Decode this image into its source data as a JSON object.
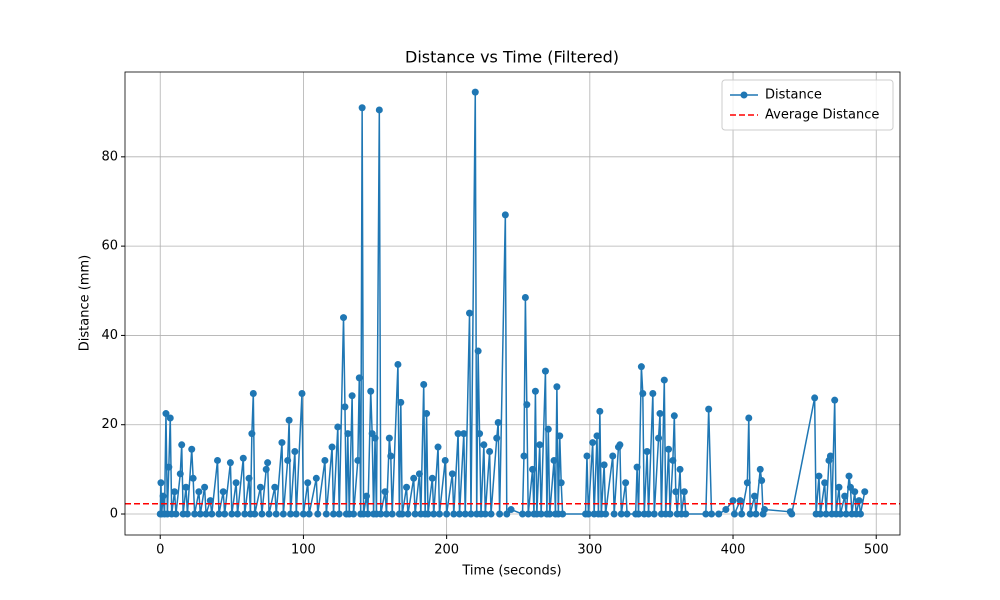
{
  "chart_data": {
    "type": "line",
    "title": "Distance vs Time (Filtered)",
    "xlabel": "Time (seconds)",
    "ylabel": "Distance (mm)",
    "x": [
      0,
      0.5,
      1,
      2,
      3,
      4,
      5,
      6,
      7,
      8,
      10,
      11,
      14,
      15,
      16,
      18,
      19,
      22,
      23,
      24,
      27,
      28,
      31,
      32,
      35,
      36,
      40,
      41,
      44,
      45,
      49,
      50,
      53,
      54,
      58,
      59,
      62,
      63,
      64,
      65,
      66,
      70,
      71,
      74,
      75,
      76,
      80,
      81,
      85,
      86,
      89,
      90,
      91,
      94,
      95,
      99,
      100,
      103,
      104,
      109,
      110,
      115,
      116,
      120,
      121,
      124,
      125,
      128,
      129,
      130,
      131,
      132,
      134,
      135,
      138,
      139,
      140,
      141,
      142,
      144,
      145,
      147,
      148,
      149,
      150,
      151,
      153,
      154,
      157,
      158,
      160,
      161,
      162,
      166,
      167,
      168,
      169,
      172,
      173,
      177,
      178,
      181,
      182,
      184,
      185,
      186,
      187,
      190,
      191,
      194,
      195,
      199,
      200,
      204,
      205,
      208,
      209,
      212,
      213,
      216,
      217,
      220,
      221,
      222,
      223,
      224,
      226,
      227,
      230,
      231,
      235,
      236,
      237,
      241,
      242,
      245,
      253,
      254,
      255,
      256,
      257,
      260,
      261,
      262,
      263,
      265,
      266,
      269,
      270,
      271,
      272,
      275,
      276,
      277,
      278,
      279,
      280,
      281,
      297,
      298,
      299,
      302,
      303,
      305,
      306,
      307,
      308,
      310,
      311,
      316,
      317,
      320,
      321,
      322,
      325,
      326,
      332,
      333,
      334,
      336,
      337,
      338,
      340,
      341,
      344,
      345,
      348,
      349,
      350,
      352,
      353,
      355,
      356,
      358,
      359,
      360,
      361,
      363,
      364,
      366,
      367,
      381,
      383,
      385,
      390,
      395,
      400,
      401,
      405,
      406,
      410,
      411,
      412,
      415,
      416,
      419,
      420,
      421,
      422,
      440,
      441,
      457,
      458,
      460,
      461,
      464,
      465,
      467,
      468,
      469,
      471,
      472,
      474,
      475,
      478,
      479,
      481,
      482,
      483,
      485,
      486,
      488,
      489,
      492
    ],
    "series": [
      {
        "name": "Distance",
        "color": "#1f77b4",
        "values": [
          0,
          7,
          0,
          4,
          0,
          22.5,
          0,
          10.5,
          21.5,
          0,
          5,
          0,
          9,
          15.5,
          0,
          6,
          0,
          14.5,
          8,
          0,
          5,
          0,
          6,
          0,
          3,
          0,
          12,
          0,
          5,
          0,
          11.5,
          0,
          7,
          0,
          12.5,
          0,
          8,
          0,
          18,
          27,
          0,
          6,
          0,
          10,
          11.5,
          0,
          6,
          0,
          16,
          0,
          12,
          21,
          0,
          14,
          0,
          27,
          0,
          7,
          0,
          8,
          0,
          12,
          0,
          15,
          0,
          19.5,
          0,
          44,
          24,
          0,
          18,
          0,
          26.5,
          0,
          12,
          30.5,
          0,
          91,
          0,
          4,
          0,
          27.5,
          18,
          0,
          17,
          0,
          90.5,
          0,
          5,
          0,
          17,
          13,
          0,
          33.5,
          0,
          25,
          0,
          6,
          0,
          8,
          0,
          9,
          0,
          29,
          0,
          22.5,
          0,
          8,
          0,
          15,
          0,
          12,
          0,
          9,
          0,
          18,
          0,
          18,
          0,
          45,
          0,
          94.5,
          0,
          36.5,
          18,
          0,
          15.5,
          0,
          14,
          0,
          17,
          20.5,
          0,
          67,
          0,
          1,
          0,
          13,
          48.5,
          24.5,
          0,
          10,
          0,
          27.5,
          0,
          15.5,
          0,
          32,
          0,
          19,
          0,
          12,
          0,
          28.5,
          0,
          17.5,
          7,
          0,
          0,
          13,
          0,
          16,
          0,
          17.5,
          0,
          23,
          0,
          11,
          0,
          13,
          0,
          15,
          15.5,
          0,
          7,
          0,
          0,
          10.5,
          0,
          33,
          27,
          0,
          14,
          0,
          27,
          0,
          17,
          22.5,
          0,
          30,
          0,
          14.5,
          0,
          12,
          22,
          5,
          0,
          10,
          0,
          5,
          0,
          0,
          23.5,
          0,
          0,
          1,
          3,
          0,
          3,
          0,
          7,
          21.5,
          0,
          4,
          0,
          10,
          7.5,
          0,
          1,
          0.5,
          0,
          26,
          0,
          8.5,
          0,
          7,
          0,
          12,
          13,
          0,
          25.5,
          0,
          6,
          0,
          4,
          0,
          8.5,
          6,
          0,
          5,
          0,
          3,
          0,
          5
        ]
      }
    ],
    "average_line": {
      "name": "Average Distance",
      "value": 2.3,
      "color": "#ff0000"
    },
    "xlim": [
      -24.6,
      516.6
    ],
    "ylim": [
      -4.7,
      99.0
    ],
    "xticks": [
      0,
      100,
      200,
      300,
      400,
      500
    ],
    "yticks": [
      0,
      20,
      40,
      60,
      80
    ],
    "grid": true,
    "legend": "upper right"
  }
}
